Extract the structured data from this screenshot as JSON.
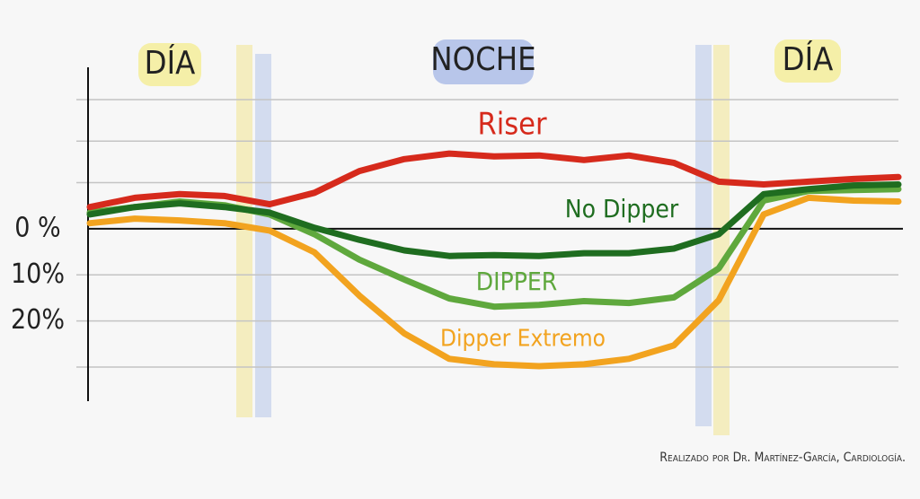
{
  "chart_data": {
    "type": "line",
    "annotations": {
      "day_left": "DÍA",
      "night": "NOCHE",
      "day_right": "DÍA",
      "credit": "Realizado por Dr. Martínez-García, Cardiología."
    },
    "ylim": [
      -35,
      37
    ],
    "inverted": true,
    "yticks": [
      {
        "value": 0,
        "label": "0 %"
      },
      {
        "value": 10,
        "label": "10%"
      },
      {
        "value": 20,
        "label": "20%"
      }
    ],
    "grid_lines": [
      -28,
      -19,
      -10,
      30
    ],
    "series": [
      {
        "name": "Dipper Extremo",
        "color": "#f2a31f",
        "values": [
          -1.2,
          -2.2,
          -1.8,
          -1.2,
          0.4,
          5.1,
          14.5,
          22.7,
          28.2,
          29.4,
          29.8,
          29.4,
          28.2,
          25.3,
          15.5,
          -3.1,
          -6.7,
          -6.1,
          -5.9
        ]
      },
      {
        "name": "DIPPER",
        "color": "#5fa83d",
        "values": [
          -3.5,
          -4.7,
          -5.9,
          -5.1,
          -3.1,
          1.2,
          6.7,
          11.0,
          15.1,
          16.9,
          16.5,
          15.7,
          16.1,
          14.9,
          8.6,
          -6.1,
          -8.2,
          -8.4,
          -8.6
        ]
      },
      {
        "name": "No Dipper",
        "color": "#1f6d20",
        "values": [
          -3.1,
          -4.7,
          -5.5,
          -4.7,
          -3.5,
          -0.2,
          2.4,
          4.7,
          5.9,
          5.7,
          5.9,
          5.3,
          5.3,
          4.3,
          1.2,
          -7.5,
          -8.6,
          -9.4,
          -9.6
        ]
      },
      {
        "name": "Riser",
        "color": "#d62a1c",
        "values": [
          -4.7,
          -6.7,
          -7.5,
          -7.1,
          -5.3,
          -7.8,
          -12.5,
          -15.1,
          -16.3,
          -15.7,
          -15.9,
          -14.9,
          -15.9,
          -14.3,
          -10.2,
          -9.6,
          -10.2,
          -10.8,
          -11.2
        ]
      }
    ]
  }
}
